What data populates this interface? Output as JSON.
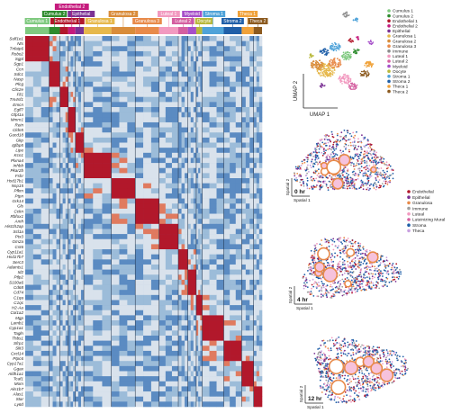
{
  "heatmap": {
    "clusters": [
      {
        "name": "Cumulus 1",
        "color": "#7fc97f"
      },
      {
        "name": "Cumulus 2",
        "color": "#2e8b2e"
      },
      {
        "name": "Endothelial 1",
        "color": "#b2182b"
      },
      {
        "name": "Endothelial 2",
        "color": "#c51b7d"
      },
      {
        "name": "Epithelial",
        "color": "#7b3294"
      },
      {
        "name": "Granulosa 1",
        "color": "#e6b84c"
      },
      {
        "name": "Granulosa 2",
        "color": "#d98c3a"
      },
      {
        "name": "Granulosa 3",
        "color": "#e88a4a"
      },
      {
        "name": "Luteal 1",
        "color": "#f29ac0"
      },
      {
        "name": "Luteal 2",
        "color": "#d45fa0"
      },
      {
        "name": "Myeloid",
        "color": "#a64fc9"
      },
      {
        "name": "Oocyte",
        "color": "#b8b83a"
      },
      {
        "name": "Stroma 1",
        "color": "#4fa3d9"
      },
      {
        "name": "Stroma 2",
        "color": "#1f5fa8"
      },
      {
        "name": "Theca 1",
        "color": "#f0a23a"
      },
      {
        "name": "Theca 2",
        "color": "#8c5a1f"
      }
    ],
    "top_labels": [
      {
        "text": "Cumulus 1",
        "color": "#7fc97f"
      },
      {
        "text": "Endothelial 1",
        "color": "#b2182b"
      },
      {
        "text": "Granulosa 1",
        "color": "#e6b84c"
      },
      {
        "text": "Granulosa 3",
        "color": "#e88a4a"
      },
      {
        "text": "Luteal 2",
        "color": "#d45fa0"
      },
      {
        "text": "Oocyte",
        "color": "#b8b83a"
      },
      {
        "text": "Stroma 2",
        "color": "#1f5fa8"
      },
      {
        "text": "Theca 2",
        "color": "#8c5a1f"
      }
    ],
    "mid_labels": [
      {
        "text": "Cumulus 2",
        "color": "#2e8b2e"
      },
      {
        "text": "Epithelial",
        "color": "#7b3294"
      },
      {
        "text": "Granulosa 2",
        "color": "#d98c3a"
      },
      {
        "text": "Luteal 1",
        "color": "#f29ac0"
      },
      {
        "text": "Myeloid",
        "color": "#a64fc9"
      },
      {
        "text": "Stroma 1",
        "color": "#4fa3d9"
      },
      {
        "text": "Theca 1",
        "color": "#f0a23a"
      }
    ],
    "upper_label": {
      "text": "Endothelial 2",
      "color": "#c51b7d"
    },
    "genes": [
      "Sulf1e1",
      "Nts",
      "Tnfaip6",
      "Robo2",
      "Sgpl",
      "Sgp1",
      "Ccn",
      "Sdc1",
      "Nasp",
      "Plcg",
      "Clic2e",
      "Fli1",
      "Tm4sf1",
      "Emcn",
      "Egfl7",
      "Gfpt1a",
      "Mmrn1",
      "Rein",
      "Cldn5",
      "Gucd18",
      "Gkp",
      "Igfbp5",
      "Lipe",
      "Kcn1",
      "Plxna4",
      "Inhbb",
      "Pkar2b",
      "Fshr",
      "Hsd17b1",
      "Nsp15",
      "Pfkm",
      "Ptpn",
      "Grk14",
      "Gls",
      "Cckn",
      "Rbfox1",
      "Amh",
      "Hist1h2ap",
      "Scl1a",
      "Ptx3",
      "Gm2a",
      "Cst6",
      "Cyp11a1",
      "Hsd17b7",
      "Serc3",
      "Adamts1",
      "Id2",
      "Ptlp2",
      "S100a6",
      "Cd68",
      "Cd74",
      "C1qa",
      "C1qc",
      "H2-Aa",
      "Col1a2",
      "Mgp",
      "Lamb1",
      "Cyp1a1",
      "Tagln",
      "Thbs1",
      "Sfrp1",
      "Slit3",
      "Cxcl14",
      "Ptpc6",
      "Cyp17a1",
      "Ggax",
      "Aldh1a1",
      "Tcaf1",
      "Mom",
      "Akr1b7",
      "Alas1",
      "Star",
      "Ly6d"
    ]
  },
  "umap": {
    "axis_x": "UMAP 1",
    "axis_y": "UMAP 2",
    "legend": [
      {
        "text": "Cumulus 1",
        "color": "#7fc97f"
      },
      {
        "text": "Cumulus 2",
        "color": "#2e8b2e"
      },
      {
        "text": "Endothelial 1",
        "color": "#b2182b"
      },
      {
        "text": "Endothelial 2",
        "color": "#c51b7d"
      },
      {
        "text": "Epithelial",
        "color": "#7b3294"
      },
      {
        "text": "Granulosa 1",
        "color": "#e6b84c"
      },
      {
        "text": "Granulosa 2",
        "color": "#d98c3a"
      },
      {
        "text": "Granulosa 3",
        "color": "#e88a4a"
      },
      {
        "text": "Immune",
        "color": "#8c8c8c"
      },
      {
        "text": "Luteal 1",
        "color": "#f29ac0"
      },
      {
        "text": "Luteal 2",
        "color": "#d45fa0"
      },
      {
        "text": "Myeloid",
        "color": "#a64fc9"
      },
      {
        "text": "Oocyte",
        "color": "#b8b83a"
      },
      {
        "text": "Stroma 1",
        "color": "#4fa3d9"
      },
      {
        "text": "Stroma 2",
        "color": "#1f5fa8"
      },
      {
        "text": "Theca 1",
        "color": "#f0a23a"
      },
      {
        "text": "Theca 2",
        "color": "#8c5a1f"
      }
    ]
  },
  "spatial": {
    "axis_x": "Spatial 1",
    "axis_y": "Spatial 2",
    "legend": [
      {
        "text": "Endothelial",
        "color": "#b2182b"
      },
      {
        "text": "Epithelial",
        "color": "#7b3294"
      },
      {
        "text": "Granulosa",
        "color": "#e88a4a"
      },
      {
        "text": "Immune",
        "color": "#a0a0a0"
      },
      {
        "text": "Luteal",
        "color": "#f29ac0"
      },
      {
        "text": "Luteinizing Mural",
        "color": "#d45fa0"
      },
      {
        "text": "Stroma",
        "color": "#1f5fa8"
      },
      {
        "text": "Theca",
        "color": "#c8a0e0"
      }
    ],
    "panels": [
      {
        "label": "0 hr"
      },
      {
        "label": "4 hr"
      },
      {
        "label": "12 hr"
      }
    ]
  }
}
